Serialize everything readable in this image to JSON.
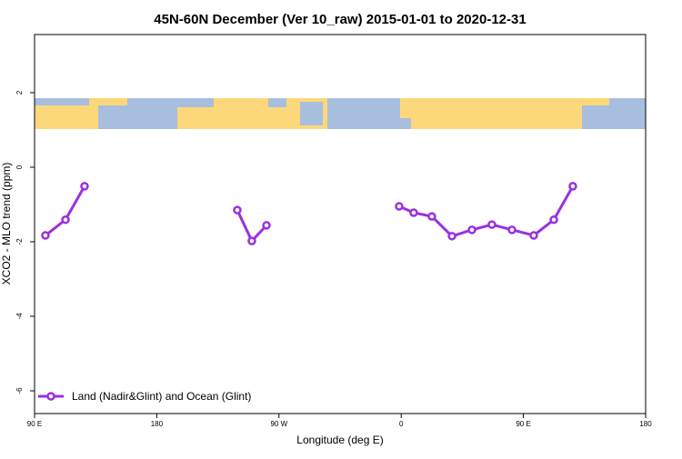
{
  "chart_data": {
    "type": "line",
    "title": "45N-60N December (Ver 10_raw)   2015-01-01 to 2020-12-31",
    "x_label": "Longitude (deg E)",
    "y_label": "XCO2 - MLO trend (ppm)",
    "x": [
      98.0,
      112.8,
      126.8,
      null,
      239.3,
      250.0,
      260.8,
      null,
      358.5,
      369.2,
      382.6,
      397.4,
      412.1,
      426.8,
      441.6,
      457.6,
      472.4,
      486.4
    ],
    "series": [
      {
        "name": "Land (Nadir&Glint) and Ocean (Glint)",
        "color": "#9b30e0",
        "values": [
          -1.83,
          -1.41,
          -0.51,
          null,
          -1.15,
          -1.98,
          -1.56,
          null,
          -1.05,
          -1.22,
          -1.32,
          -1.85,
          -1.68,
          -1.54,
          -1.68,
          -1.83,
          -1.41,
          -0.51
        ]
      }
    ],
    "xlim": [
      90,
      540
    ],
    "xticks": [
      {
        "value": 90,
        "label": "90 E"
      },
      180,
      {
        "value": 270,
        "label": "90 W"
      },
      {
        "value": 360,
        "label": "0"
      },
      {
        "value": 450,
        "label": "90 E"
      },
      {
        "value": 540,
        "label": "180"
      }
    ],
    "ylim": [
      -6.61,
      3.56
    ],
    "yticks": [
      2,
      0,
      -2,
      -4,
      -6
    ],
    "legend": "bottom-left"
  }
}
